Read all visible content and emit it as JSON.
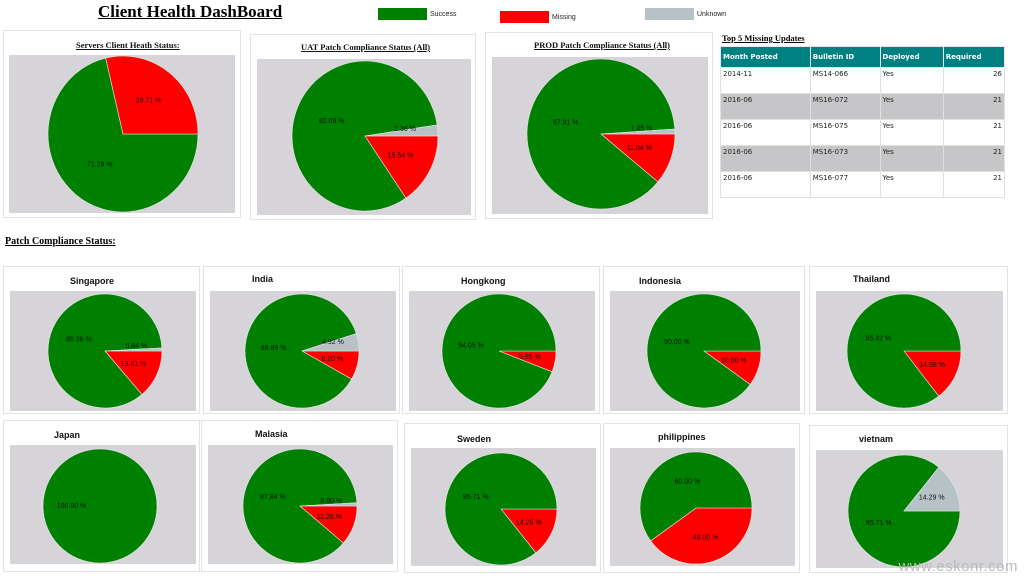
{
  "header": {
    "title": "Client Health DashBoard"
  },
  "legend": [
    {
      "label": "Success",
      "color": "#008000"
    },
    {
      "label": "Missing",
      "color": "#ff0000"
    },
    {
      "label": "Unknown",
      "color": "#b7c2c7"
    }
  ],
  "section_title": "Patch Compliance Status:",
  "top_missing": {
    "title": "Top 5 Missing Updates",
    "columns": [
      "Month Posted",
      "Bulletin ID",
      "Deployed",
      "Required"
    ],
    "rows": [
      [
        "2014-11",
        "MS14-066",
        "Yes",
        "26"
      ],
      [
        "2016-06",
        "MS16-072",
        "Yes",
        "21"
      ],
      [
        "2016-06",
        "MS16-075",
        "Yes",
        "21"
      ],
      [
        "2016-06",
        "MS16-073",
        "Yes",
        "21"
      ],
      [
        "2016-06",
        "MS16-077",
        "Yes",
        "21"
      ]
    ]
  },
  "watermark": "www.eskonr.com",
  "chart_data": [
    {
      "type": "pie",
      "title": "Servers Client Heath Status:",
      "slices": [
        {
          "name": "Success",
          "value": 71.29,
          "label": "71.29 %"
        },
        {
          "name": "Missing",
          "value": 28.71,
          "label": "28.71 %"
        }
      ]
    },
    {
      "type": "pie",
      "title": "UAT Patch Compliance Status (All)",
      "slices": [
        {
          "name": "Missing",
          "value": 15.54,
          "label": "15.54 %"
        },
        {
          "name": "Success",
          "value": 82.09,
          "label": "82.09 %"
        },
        {
          "name": "Unknown",
          "value": 2.36,
          "label": "2.36 %"
        }
      ]
    },
    {
      "type": "pie",
      "title": "PROD Patch Compliance Status (All)",
      "slices": [
        {
          "name": "Missing",
          "value": 11.04,
          "label": "11.04 %"
        },
        {
          "name": "Success",
          "value": 87.91,
          "label": "87.91 %"
        },
        {
          "name": "Unknown",
          "value": 1.05,
          "label": "1.05 %"
        }
      ]
    },
    {
      "type": "pie",
      "title": "Singapore",
      "slices": [
        {
          "name": "Missing",
          "value": 13.81,
          "label": "13.81 %"
        },
        {
          "name": "Success",
          "value": 85.36,
          "label": "85.36 %"
        },
        {
          "name": "Unknown",
          "value": 0.84,
          "label": "0.84 %"
        }
      ]
    },
    {
      "type": "pie",
      "title": "India",
      "slices": [
        {
          "name": "Missing",
          "value": 8.2,
          "label": "8.20 %"
        },
        {
          "name": "Success",
          "value": 86.89,
          "label": "86.89 %"
        },
        {
          "name": "Unknown",
          "value": 4.92,
          "label": "4.92 %"
        }
      ]
    },
    {
      "type": "pie",
      "title": "Hongkong",
      "slices": [
        {
          "name": "Missing",
          "value": 5.95,
          "label": "5.95 %"
        },
        {
          "name": "Success",
          "value": 94.05,
          "label": "94.05 %"
        }
      ]
    },
    {
      "type": "pie",
      "title": "Indonesia",
      "slices": [
        {
          "name": "Missing",
          "value": 10.0,
          "label": "10.00 %"
        },
        {
          "name": "Success",
          "value": 90.0,
          "label": "90.00 %"
        }
      ]
    },
    {
      "type": "pie",
      "title": "Thailand",
      "slices": [
        {
          "name": "Missing",
          "value": 14.58,
          "label": "14.58 %"
        },
        {
          "name": "Success",
          "value": 85.42,
          "label": "85.42 %"
        }
      ]
    },
    {
      "type": "pie",
      "title": "Japan",
      "slices": [
        {
          "name": "Success",
          "value": 100.0,
          "label": "100.00 %"
        }
      ]
    },
    {
      "type": "pie",
      "title": "Malasia",
      "slices": [
        {
          "name": "Missing",
          "value": 11.26,
          "label": "11.26 %"
        },
        {
          "name": "Success",
          "value": 87.84,
          "label": "87.84 %"
        },
        {
          "name": "Unknown",
          "value": 0.9,
          "label": "0.90 %"
        }
      ]
    },
    {
      "type": "pie",
      "title": "Sweden",
      "slices": [
        {
          "name": "Missing",
          "value": 14.29,
          "label": "14.29 %"
        },
        {
          "name": "Success",
          "value": 85.71,
          "label": "85.71 %"
        }
      ]
    },
    {
      "type": "pie",
      "title": "philippines",
      "slices": [
        {
          "name": "Missing",
          "value": 40.0,
          "label": "40.00 %"
        },
        {
          "name": "Success",
          "value": 60.0,
          "label": "60.00 %"
        }
      ]
    },
    {
      "type": "pie",
      "title": "vietnam",
      "slices": [
        {
          "name": "Success",
          "value": 85.71,
          "label": "85.71 %"
        },
        {
          "name": "Unknown",
          "value": 14.29,
          "label": "14.29 %"
        }
      ]
    }
  ]
}
